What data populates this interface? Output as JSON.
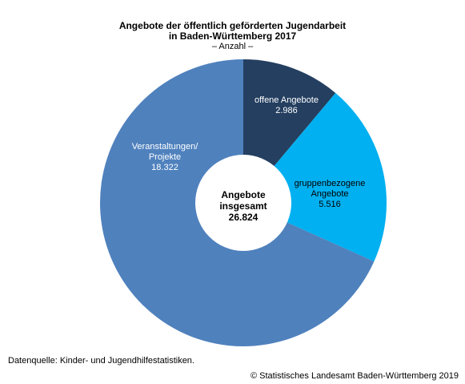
{
  "chart_data": {
    "type": "pie",
    "title_line1": "Angebote der öffentlich geförderten Jugendarbeit",
    "title_line2": "in Baden-Württemberg 2017",
    "subtitle": "– Anzahl –",
    "center_label": [
      "Angebote",
      "insgesamt",
      "26.824"
    ],
    "slices": [
      {
        "label_lines": [
          "offene Angebote"
        ],
        "value": 2986,
        "value_label": "2.986",
        "color": "#243f60"
      },
      {
        "label_lines": [
          "gruppenbezogene",
          "Angebote"
        ],
        "value": 5516,
        "value_label": "5.516",
        "color": "#00b0f0"
      },
      {
        "label_lines": [
          "Veranstaltungen/",
          "Projekte"
        ],
        "value": 18322,
        "value_label": "18.322",
        "color": "#4f81bd"
      }
    ],
    "label_colors": [
      "#ffffff",
      "#000000",
      "#ffffff"
    ]
  },
  "footer": {
    "source": "Datenquelle: Kinder- und Jugendhilfestatistiken.",
    "copyright": "© Statistisches Landesamt Baden-Württemberg 2019"
  }
}
